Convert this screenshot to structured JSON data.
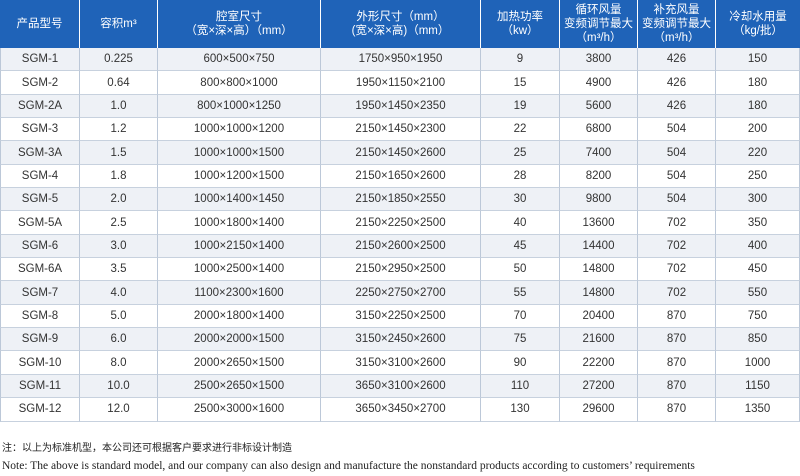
{
  "columns": [
    {
      "lines": [
        "产品型号"
      ]
    },
    {
      "lines": [
        "容积m³"
      ]
    },
    {
      "lines": [
        "腔室尺寸",
        "（宽×深×高）（mm）"
      ]
    },
    {
      "lines": [
        "外形尺寸（mm）",
        "(宽×深×高)（mm）"
      ]
    },
    {
      "lines": [
        "加热功率",
        "（kw）"
      ]
    },
    {
      "lines": [
        "循环风量",
        "变频调节最大",
        "（m³/h）"
      ]
    },
    {
      "lines": [
        "补充风量",
        "变频调节最大",
        "（m³/h）"
      ]
    },
    {
      "lines": [
        "冷却水用量",
        "（kg/批）"
      ]
    }
  ],
  "rows": [
    [
      "SGM-1",
      "0.225",
      "600×500×750",
      "1750×950×1950",
      "9",
      "3800",
      "426",
      "150"
    ],
    [
      "SGM-2",
      "0.64",
      "800×800×1000",
      "1950×1150×2100",
      "15",
      "4900",
      "426",
      "180"
    ],
    [
      "SGM-2A",
      "1.0",
      "800×1000×1250",
      "1950×1450×2350",
      "19",
      "5600",
      "426",
      "180"
    ],
    [
      "SGM-3",
      "1.2",
      "1000×1000×1200",
      "2150×1450×2300",
      "22",
      "6800",
      "504",
      "200"
    ],
    [
      "SGM-3A",
      "1.5",
      "1000×1000×1500",
      "2150×1450×2600",
      "25",
      "7400",
      "504",
      "220"
    ],
    [
      "SGM-4",
      "1.8",
      "1000×1200×1500",
      "2150×1650×2600",
      "28",
      "8200",
      "504",
      "250"
    ],
    [
      "SGM-5",
      "2.0",
      "1000×1400×1450",
      "2150×1850×2550",
      "30",
      "9800",
      "504",
      "300"
    ],
    [
      "SGM-5A",
      "2.5",
      "1000×1800×1400",
      "2150×2250×2500",
      "40",
      "13600",
      "702",
      "350"
    ],
    [
      "SGM-6",
      "3.0",
      "1000×2150×1400",
      "2150×2600×2500",
      "45",
      "14400",
      "702",
      "400"
    ],
    [
      "SGM-6A",
      "3.5",
      "1000×2500×1400",
      "2150×2950×2500",
      "50",
      "14800",
      "702",
      "450"
    ],
    [
      "SGM-7",
      "4.0",
      "1100×2300×1600",
      "2250×2750×2700",
      "55",
      "14800",
      "702",
      "550"
    ],
    [
      "SGM-8",
      "5.0",
      "2000×1800×1400",
      "3150×2250×2500",
      "70",
      "20400",
      "870",
      "750"
    ],
    [
      "SGM-9",
      "6.0",
      "2000×2000×1500",
      "3150×2450×2600",
      "75",
      "21600",
      "870",
      "850"
    ],
    [
      "SGM-10",
      "8.0",
      "2000×2650×1500",
      "3150×3100×2600",
      "90",
      "22200",
      "870",
      "1000"
    ],
    [
      "SGM-11",
      "10.0",
      "2500×2650×1500",
      "3650×3100×2600",
      "110",
      "27200",
      "870",
      "1150"
    ],
    [
      "SGM-12",
      "12.0",
      "2500×3000×1600",
      "3650×3450×2700",
      "130",
      "29600",
      "870",
      "1350"
    ]
  ],
  "notes": {
    "chinese": "注：以上为标准机型，本公司还可根据客户要求进行非标设计制造",
    "english": "Note: The above is standard model, and our company can also design and manufacture the nonstandard products according to customers’ requirements"
  },
  "colors": {
    "header_bg": "#1f63b8",
    "header_text": "#ffffff",
    "stripe": "#eef1f6"
  }
}
